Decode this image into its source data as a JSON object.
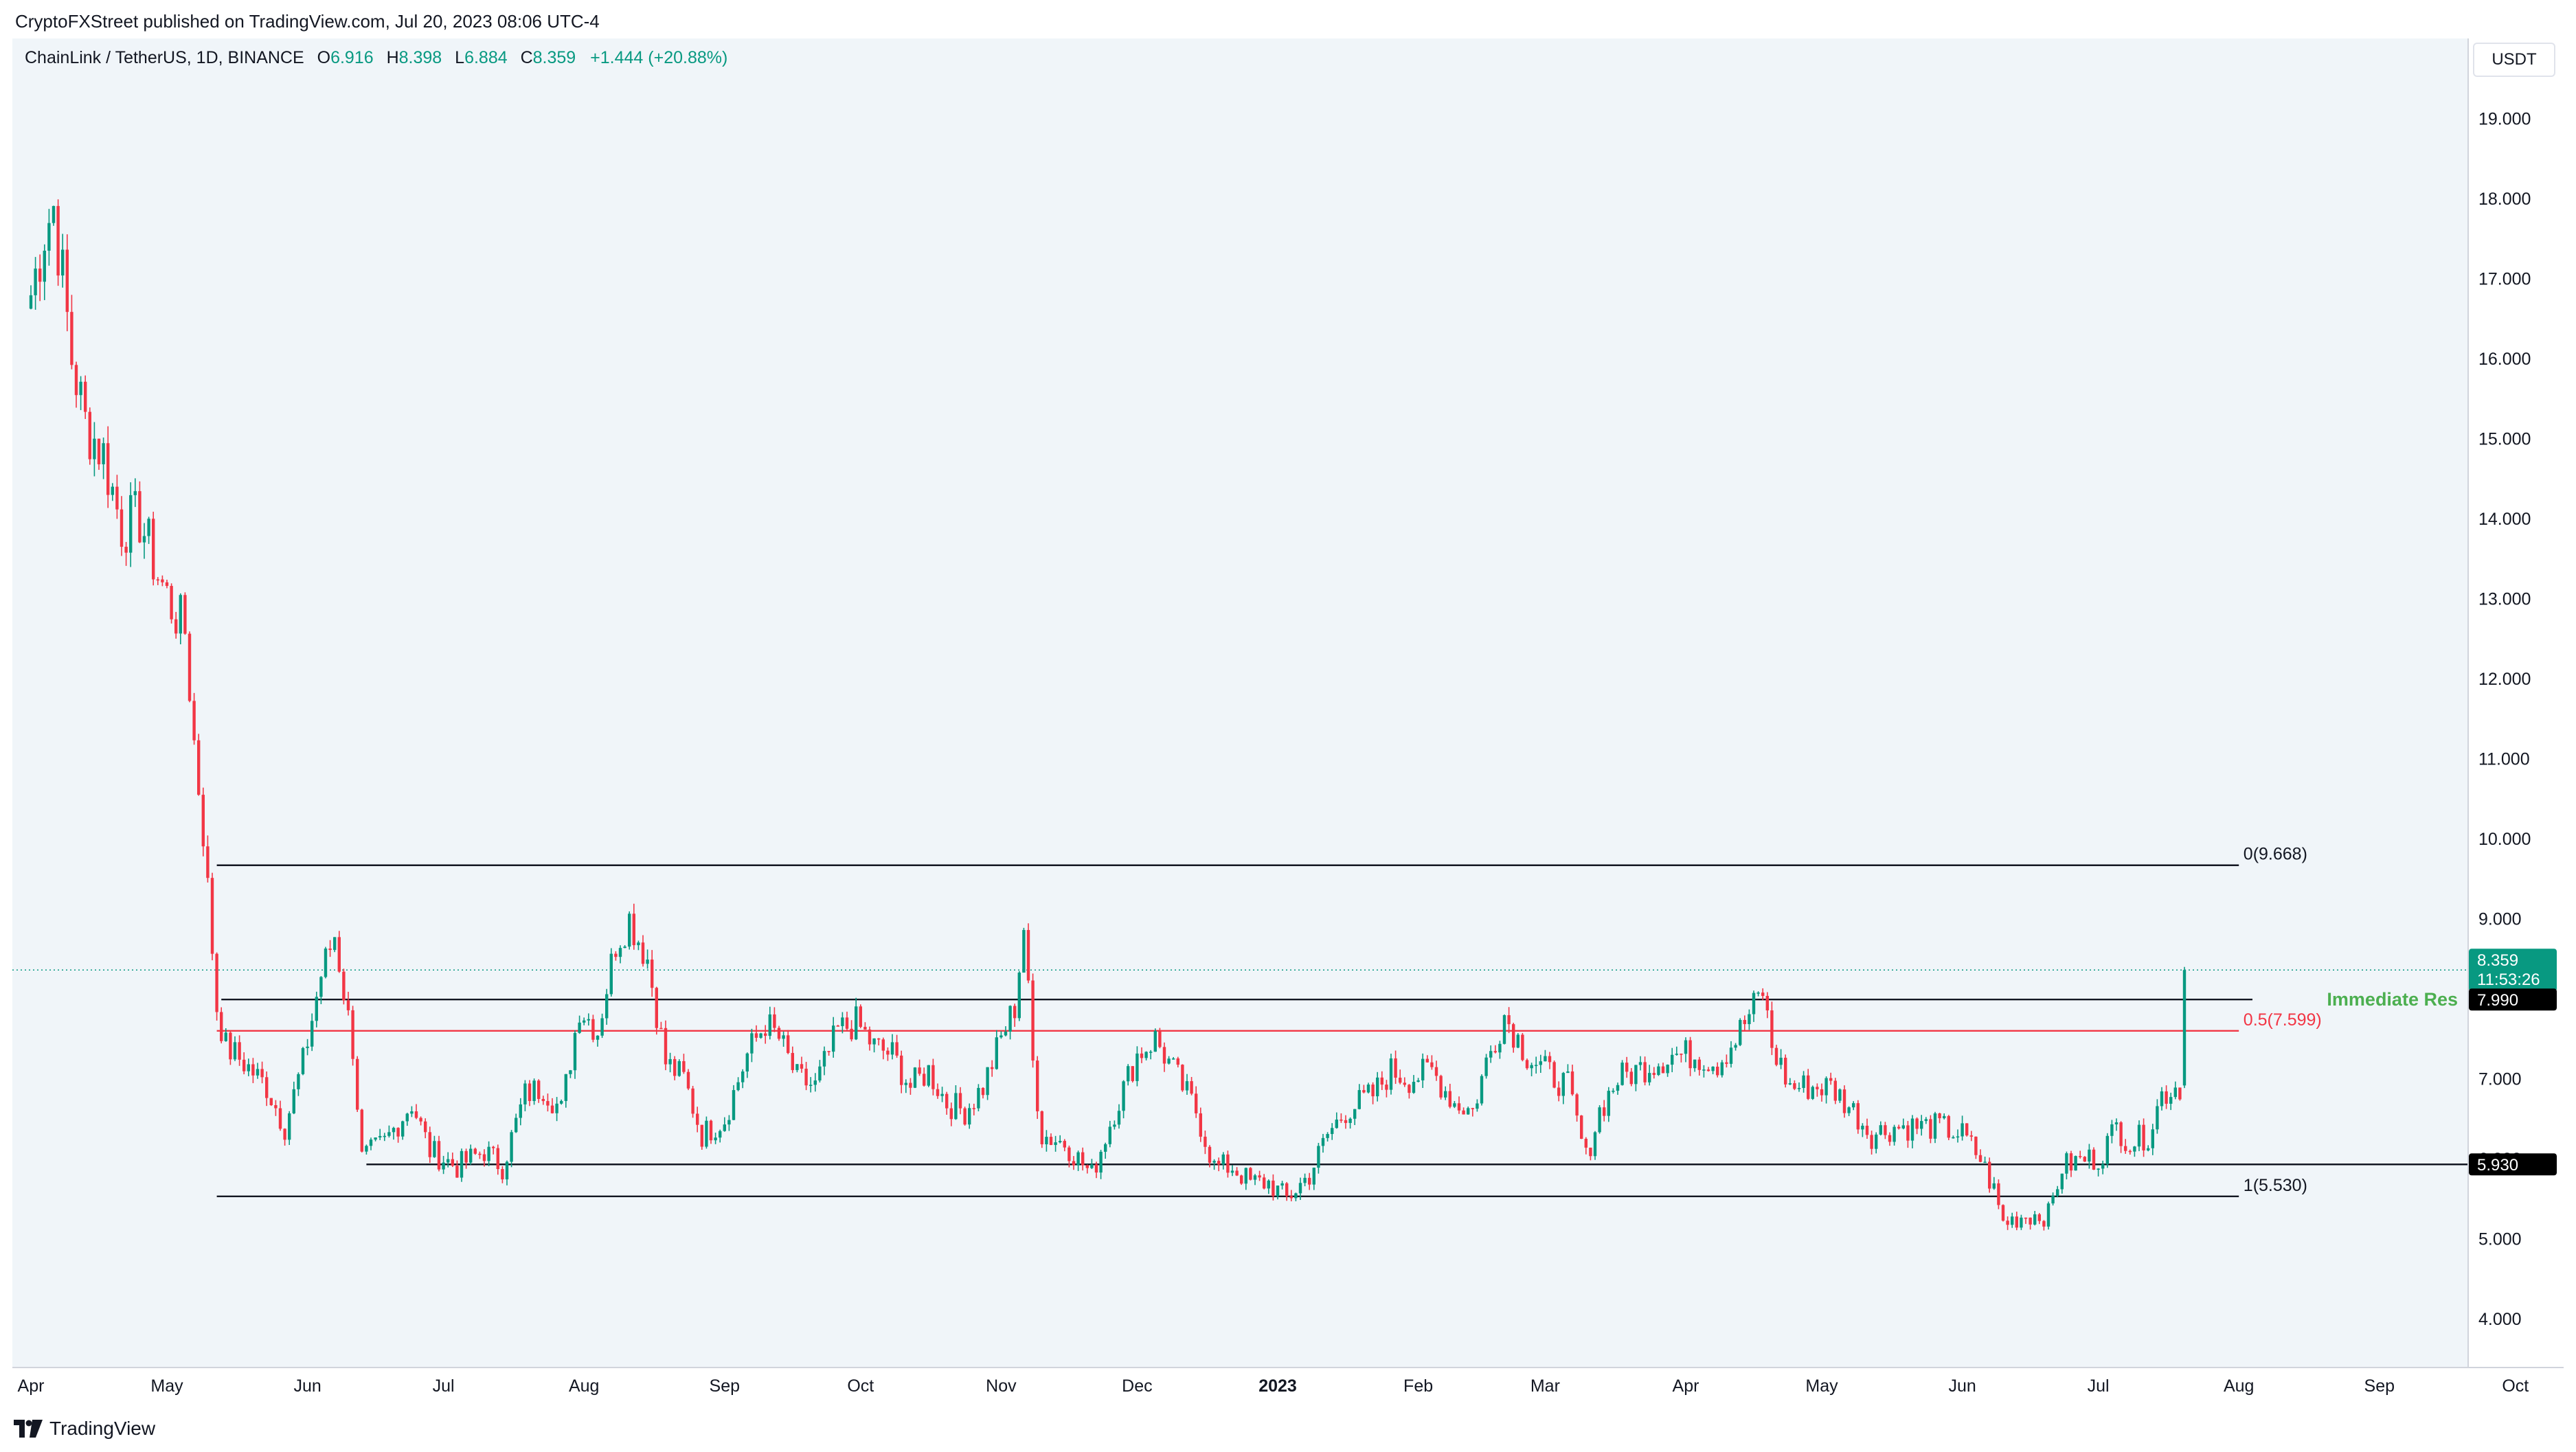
{
  "header": {
    "published": "CryptoFXStreet published on TradingView.com, Jul 20, 2023 08:06 UTC-4"
  },
  "legend": {
    "symbol": "ChainLink / TetherUS, 1D, BINANCE",
    "open_key": "O",
    "open": "6.916",
    "high_key": "H",
    "high": "8.398",
    "low_key": "L",
    "low": "6.884",
    "close_key": "C",
    "close": "8.359",
    "change": "+1.444 (+20.88%)"
  },
  "currency": "USDT",
  "footer": {
    "brand": "TradingView"
  },
  "colors": {
    "up": "#089981",
    "down": "#f23645",
    "fib_mid": "#f23645",
    "annotation": "#4caf50",
    "background": "#f0f5f9"
  },
  "chart_data": {
    "type": "candlestick",
    "title": "ChainLink / TetherUS, 1D, BINANCE",
    "ylim": [
      3.4,
      20.0
    ],
    "y_ticks": [
      "19.000",
      "18.000",
      "17.000",
      "16.000",
      "15.000",
      "14.000",
      "13.000",
      "12.000",
      "11.000",
      "10.000",
      "9.000",
      "8.000",
      "7.000",
      "6.000",
      "5.000",
      "4.000"
    ],
    "y_tick_values": [
      19,
      18,
      17,
      16,
      15,
      14,
      13,
      12,
      11,
      10,
      9,
      8,
      7,
      6,
      5,
      4
    ],
    "x_ticks": [
      "Apr",
      "May",
      "Jun",
      "Jul",
      "Aug",
      "Sep",
      "Oct",
      "Nov",
      "Dec",
      "2023",
      "Feb",
      "Mar",
      "Apr",
      "May",
      "Jun",
      "Jul",
      "Aug",
      "Sep",
      "Oct"
    ],
    "x_tick_dates": [
      "2022-04-01",
      "2022-05-01",
      "2022-06-01",
      "2022-07-01",
      "2022-08-01",
      "2022-09-01",
      "2022-10-01",
      "2022-11-01",
      "2022-12-01",
      "2023-01-01",
      "2023-02-01",
      "2023-03-01",
      "2023-04-01",
      "2023-05-01",
      "2023-06-01",
      "2023-07-01",
      "2023-08-01",
      "2023-09-01",
      "2023-10-01"
    ],
    "grid": false,
    "series": [
      {
        "type": "candlestick",
        "start": "2022-04-01",
        "end": "2023-07-20",
        "anchors": [
          [
            "2022-04-01",
            16.8
          ],
          [
            "2022-04-04",
            17.6
          ],
          [
            "2022-04-06",
            17.9
          ],
          [
            "2022-04-08",
            17.0
          ],
          [
            "2022-04-10",
            16.0
          ],
          [
            "2022-04-13",
            15.2
          ],
          [
            "2022-04-17",
            14.8
          ],
          [
            "2022-04-21",
            13.9
          ],
          [
            "2022-04-25",
            14.0
          ],
          [
            "2022-04-29",
            13.3
          ],
          [
            "2022-05-02",
            12.9
          ],
          [
            "2022-05-05",
            12.6
          ],
          [
            "2022-05-07",
            11.2
          ],
          [
            "2022-05-09",
            10.1
          ],
          [
            "2022-05-12",
            7.9
          ],
          [
            "2022-05-14",
            7.4
          ],
          [
            "2022-05-18",
            7.2
          ],
          [
            "2022-05-23",
            6.9
          ],
          [
            "2022-05-27",
            6.4
          ],
          [
            "2022-05-31",
            7.2
          ],
          [
            "2022-06-04",
            8.3
          ],
          [
            "2022-06-07",
            8.8
          ],
          [
            "2022-06-11",
            7.4
          ],
          [
            "2022-06-13",
            6.0
          ],
          [
            "2022-06-18",
            6.2
          ],
          [
            "2022-06-24",
            6.7
          ],
          [
            "2022-06-28",
            6.1
          ],
          [
            "2022-07-04",
            5.9
          ],
          [
            "2022-07-10",
            6.1
          ],
          [
            "2022-07-14",
            5.9
          ],
          [
            "2022-07-19",
            6.8
          ],
          [
            "2022-07-23",
            6.9
          ],
          [
            "2022-07-27",
            6.6
          ],
          [
            "2022-07-31",
            7.9
          ],
          [
            "2022-08-04",
            7.6
          ],
          [
            "2022-08-08",
            8.7
          ],
          [
            "2022-08-11",
            9.0
          ],
          [
            "2022-08-15",
            8.5
          ],
          [
            "2022-08-19",
            7.2
          ],
          [
            "2022-08-23",
            7.0
          ],
          [
            "2022-08-27",
            6.3
          ],
          [
            "2022-09-01",
            6.5
          ],
          [
            "2022-09-06",
            7.3
          ],
          [
            "2022-09-10",
            7.7
          ],
          [
            "2022-09-13",
            7.5
          ],
          [
            "2022-09-17",
            7.0
          ],
          [
            "2022-09-21",
            6.9
          ],
          [
            "2022-09-26",
            7.6
          ],
          [
            "2022-09-30",
            7.7
          ],
          [
            "2022-10-04",
            7.4
          ],
          [
            "2022-10-08",
            7.3
          ],
          [
            "2022-10-12",
            6.9
          ],
          [
            "2022-10-16",
            7.1
          ],
          [
            "2022-10-20",
            6.7
          ],
          [
            "2022-10-24",
            6.6
          ],
          [
            "2022-10-28",
            6.9
          ],
          [
            "2022-11-01",
            7.5
          ],
          [
            "2022-11-04",
            7.9
          ],
          [
            "2022-11-06",
            8.9
          ],
          [
            "2022-11-08",
            7.2
          ],
          [
            "2022-11-10",
            6.3
          ],
          [
            "2022-11-15",
            6.2
          ],
          [
            "2022-11-21",
            5.8
          ],
          [
            "2022-11-26",
            6.6
          ],
          [
            "2022-12-01",
            7.3
          ],
          [
            "2022-12-05",
            7.5
          ],
          [
            "2022-12-10",
            7.0
          ],
          [
            "2022-12-14",
            6.6
          ],
          [
            "2022-12-18",
            5.9
          ],
          [
            "2022-12-22",
            5.9
          ],
          [
            "2022-12-26",
            5.7
          ],
          [
            "2022-12-30",
            5.7
          ],
          [
            "2023-01-03",
            5.5
          ],
          [
            "2023-01-08",
            5.8
          ],
          [
            "2023-01-12",
            6.3
          ],
          [
            "2023-01-16",
            6.6
          ],
          [
            "2023-01-22",
            6.8
          ],
          [
            "2023-01-26",
            7.1
          ],
          [
            "2023-01-30",
            7.0
          ],
          [
            "2023-02-04",
            7.1
          ],
          [
            "2023-02-09",
            6.7
          ],
          [
            "2023-02-13",
            6.6
          ],
          [
            "2023-02-16",
            7.2
          ],
          [
            "2023-02-20",
            7.8
          ],
          [
            "2023-02-25",
            7.3
          ],
          [
            "2023-03-01",
            7.1
          ],
          [
            "2023-03-06",
            6.9
          ],
          [
            "2023-03-10",
            6.0
          ],
          [
            "2023-03-13",
            6.6
          ],
          [
            "2023-03-17",
            7.0
          ],
          [
            "2023-03-21",
            7.1
          ],
          [
            "2023-03-25",
            7.2
          ],
          [
            "2023-03-29",
            7.3
          ],
          [
            "2023-04-03",
            7.3
          ],
          [
            "2023-04-08",
            7.2
          ],
          [
            "2023-04-12",
            7.5
          ],
          [
            "2023-04-15",
            7.8
          ],
          [
            "2023-04-18",
            8.1
          ],
          [
            "2023-04-20",
            7.4
          ],
          [
            "2023-04-24",
            6.9
          ],
          [
            "2023-04-28",
            6.9
          ],
          [
            "2023-05-03",
            6.9
          ],
          [
            "2023-05-08",
            6.6
          ],
          [
            "2023-05-12",
            6.3
          ],
          [
            "2023-05-17",
            6.4
          ],
          [
            "2023-05-22",
            6.4
          ],
          [
            "2023-05-27",
            6.4
          ],
          [
            "2023-06-01",
            6.3
          ],
          [
            "2023-06-05",
            6.0
          ],
          [
            "2023-06-08",
            5.6
          ],
          [
            "2023-06-10",
            5.2
          ],
          [
            "2023-06-15",
            5.3
          ],
          [
            "2023-06-20",
            5.3
          ],
          [
            "2023-06-23",
            5.9
          ],
          [
            "2023-06-28",
            6.0
          ],
          [
            "2023-07-01",
            6.0
          ],
          [
            "2023-07-05",
            6.4
          ],
          [
            "2023-07-08",
            6.2
          ],
          [
            "2023-07-12",
            6.3
          ],
          [
            "2023-07-15",
            6.8
          ],
          [
            "2023-07-18",
            6.9
          ],
          [
            "2023-07-19",
            6.9
          ],
          [
            "2023-07-20",
            8.359
          ]
        ]
      }
    ],
    "levels": [
      {
        "name": "fib_0",
        "label": "0(9.668)",
        "value": 9.668,
        "color": "#131722"
      },
      {
        "name": "fib_05",
        "label": "0.5(7.599)",
        "value": 7.599,
        "color": "#f23645"
      },
      {
        "name": "fib_1",
        "label": "1(5.530)",
        "value": 5.53,
        "color": "#131722"
      },
      {
        "name": "immediate_res",
        "label": "Immediate Res",
        "value": 7.99,
        "color": "#131722"
      },
      {
        "name": "support",
        "value": 5.93,
        "color": "#131722"
      }
    ],
    "fib_start": "2022-05-12",
    "fib_end": "2023-08-01",
    "fib_label_date": "2023-08-02",
    "level_ext_date": "2023-08-04",
    "annotation": {
      "text": "Immediate Res",
      "color": "#4caf50"
    },
    "price_tags": [
      {
        "value": 8.359,
        "lines": [
          "8.359",
          "11:53:26"
        ],
        "bg": "#089981",
        "fg": "#ffffff"
      },
      {
        "value": 7.99,
        "lines": [
          "7.990"
        ],
        "bg": "#000000",
        "fg": "#ffffff"
      },
      {
        "value": 5.93,
        "lines": [
          "5.930"
        ],
        "bg": "#000000",
        "fg": "#ffffff"
      }
    ]
  }
}
